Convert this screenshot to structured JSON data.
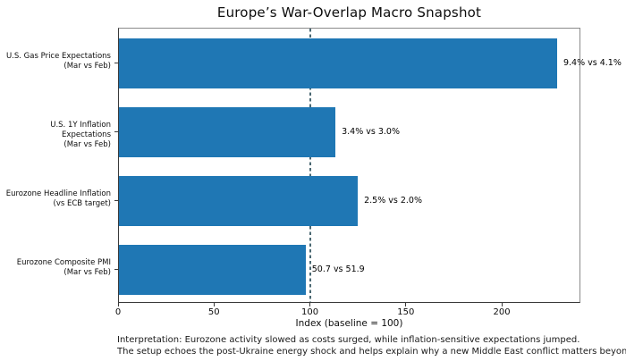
{
  "chart_data": {
    "type": "bar",
    "orientation": "horizontal",
    "title": "Europe’s War-Overlap Macro Snapshot",
    "xlabel": "Index (baseline = 100)",
    "xlim": [
      0,
      241
    ],
    "xticks": [
      0,
      50,
      100,
      150,
      200
    ],
    "xtick_labels": [
      "0",
      "50",
      "100",
      "150",
      "200"
    ],
    "grid": "off",
    "legend": "none",
    "baseline_value": 100,
    "baseline_style": "dashed",
    "colors": {
      "bar": "#1f77b4",
      "baseline": "#4a6872",
      "axis": "#3a3a3a"
    },
    "rows": [
      {
        "category_line1": "U.S. Gas Price Expectations",
        "category_line2": "(Mar vs Feb)",
        "value": 229.3,
        "annotation": "9.4% vs 4.1%"
      },
      {
        "category_line1": "U.S. 1Y Inflation Expectations",
        "category_line2": "(Mar vs Feb)",
        "value": 113.3,
        "annotation": "3.4% vs 3.0%"
      },
      {
        "category_line1": "Eurozone Headline Inflation",
        "category_line2": "(vs ECB target)",
        "value": 125.0,
        "annotation": "2.5% vs 2.0%"
      },
      {
        "category_line1": "Eurozone Composite PMI",
        "category_line2": "(Mar vs Feb)",
        "value": 97.7,
        "annotation": "50.7 vs 51.9"
      }
    ],
    "footnote": {
      "line1": "Interpretation: Eurozone activity slowed as costs surged, while inflation-sensitive expectations jumped.",
      "line2": "The setup echoes the post-Ukraine energy shock and helps explain why a new Middle East conflict matters beyond oil alone."
    }
  }
}
